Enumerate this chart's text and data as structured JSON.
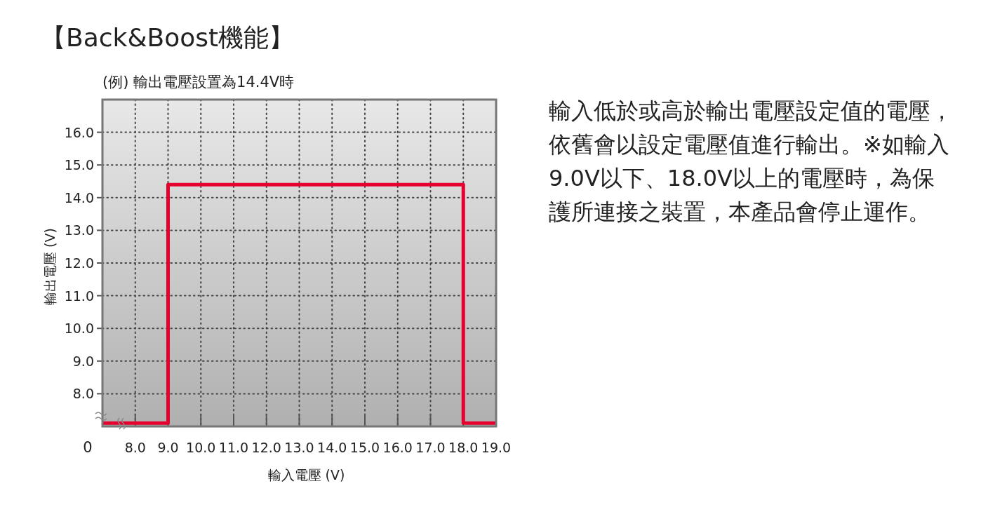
{
  "chart_data": {
    "type": "line",
    "title": "【Back&Boost機能】",
    "subtitle": "(例) 輸出電壓設置為14.4V時",
    "xlabel": "輸入電壓 (V)",
    "ylabel": "輸出電壓 (V)",
    "xlim": [
      7,
      19
    ],
    "ylim": [
      7,
      17
    ],
    "xticks": [
      {
        "value": 8,
        "label": "8.0"
      },
      {
        "value": 9,
        "label": "9.0"
      },
      {
        "value": 10,
        "label": "10.0"
      },
      {
        "value": 11,
        "label": "11.0"
      },
      {
        "value": 12,
        "label": "12.0"
      },
      {
        "value": 13,
        "label": "13.0"
      },
      {
        "value": 14,
        "label": "14.0"
      },
      {
        "value": 15,
        "label": "15.0"
      },
      {
        "value": 16,
        "label": "16.0"
      },
      {
        "value": 17,
        "label": "17.0"
      },
      {
        "value": 18,
        "label": "18.0"
      },
      {
        "value": 19,
        "label": "19.0"
      }
    ],
    "yticks": [
      {
        "value": 8,
        "label": "8.0"
      },
      {
        "value": 9,
        "label": "9.0"
      },
      {
        "value": 10,
        "label": "10.0"
      },
      {
        "value": 11,
        "label": "11.0"
      },
      {
        "value": 12,
        "label": "12.0"
      },
      {
        "value": 13,
        "label": "13.0"
      },
      {
        "value": 14,
        "label": "14.0"
      },
      {
        "value": 15,
        "label": "15.0"
      },
      {
        "value": 16,
        "label": "16.0"
      }
    ],
    "grid": true,
    "line_style": "solid",
    "marker": "none",
    "series": [
      {
        "color": "#e5002d",
        "x": [
          7,
          9,
          9,
          18,
          18,
          19
        ],
        "values": [
          7.1,
          7.1,
          14.4,
          14.4,
          7.1,
          7.1
        ]
      }
    ],
    "annotations": [
      "0",
      "輸入低於或高於輸出電壓設定值的電壓，依舊會以設定電壓值進行輸出。※如輸入9.0V以下、18.0V以上的電壓時，為保護所連接之裝置，本產品會停止運作。"
    ]
  }
}
